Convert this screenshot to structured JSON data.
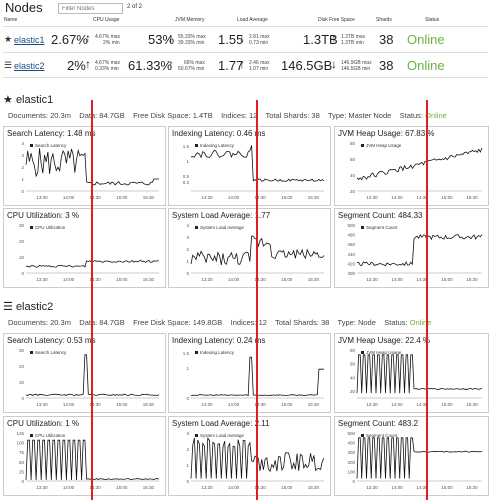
{
  "header": {
    "title": "Nodes",
    "filter_placeholder": "Filter Nodes",
    "pager": "2 of 2"
  },
  "columns": [
    "Name",
    "CPU Usage",
    "JVM Memory",
    "Load Average",
    "Disk Free Space",
    "Shards",
    "Status"
  ],
  "nodes": [
    {
      "name": "elastic1",
      "cpu": "2.67%",
      "cpu_max": "4.67% max",
      "cpu_min": "2% min",
      "jvm": "53%",
      "jvm_max": "55.33% max",
      "jvm_min": "39.33% min",
      "load": "1.55",
      "load_max": "2.81 max",
      "load_min": "0.73 min",
      "disk": "1.3TB",
      "disk_max": "1.3TB max",
      "disk_min": "1.3TB min",
      "shards": "38",
      "status": "Online",
      "cpu_arrow": "↑",
      "jvm_arrow": "↑",
      "load_arrow": "↓",
      "disk_arrow": "↑"
    },
    {
      "name": "elastic2",
      "cpu": "2%",
      "cpu_max": "4.67% max",
      "cpu_min": "0.33% min",
      "jvm": "61.33%",
      "jvm_max": "66% max",
      "jvm_min": "50.67% min",
      "load": "1.77",
      "load_max": "2.46 max",
      "load_min": "1.07 min",
      "disk": "146.5GB",
      "disk_max": "146.9GB max",
      "disk_min": "146.5GB min",
      "shards": "38",
      "status": "Online",
      "cpu_arrow": "↑",
      "jvm_arrow": "↑",
      "load_arrow": "↑",
      "disk_arrow": "↓"
    }
  ],
  "sections": [
    {
      "title": "elastic1",
      "summary": {
        "documents": "Documents: 20.3m",
        "data": "Data: 84.7GB",
        "disk": "Free Disk Space: 1.4TB",
        "indices": "Indices: 12",
        "shards": "Total Shards: 38",
        "type": "Type: Master Node",
        "status_label": "Status: ",
        "status": "Online"
      },
      "panels": [
        {
          "title": "Search Latency: 1.48 ms",
          "legend": "Search Latency"
        },
        {
          "title": "Indexing Latency: 0.46 ms",
          "legend": "Indexing Latency"
        },
        {
          "title": "JVM Heap Usage: 67.83 %",
          "legend": "JVM Heap Usage"
        },
        {
          "title": "CPU Utilization: 3 %",
          "legend": "CPU Utilization"
        },
        {
          "title": "System Load Average: 1.77",
          "legend": "System Load Average"
        },
        {
          "title": "Segment Count: 484.33",
          "legend": "Segment Count"
        }
      ]
    },
    {
      "title": "elastic2",
      "summary": {
        "documents": "Documents: 20.3m",
        "data": "Data: 84.7GB",
        "disk": "Free Disk Space: 149.8GB",
        "indices": "Indices: 12",
        "shards": "Total Shards: 38",
        "type": "Type: Node",
        "status_label": "Status: ",
        "status": "Online"
      },
      "panels": [
        {
          "title": "Search Latency: 0.53 ms",
          "legend": "Search Latency"
        },
        {
          "title": "Indexing Latency: 0.24 ms",
          "legend": "Indexing Latency"
        },
        {
          "title": "JVM Heap Usage: 22.4 %",
          "legend": "JVM Heap Usage"
        },
        {
          "title": "CPU Utilization: 1 %",
          "legend": "CPU Utilization"
        },
        {
          "title": "System Load Average: 2.11",
          "legend": "System Load Average"
        },
        {
          "title": "Segment Count: 483.2",
          "legend": "Segment Count"
        }
      ]
    }
  ],
  "x_ticks": [
    "13:30",
    "14:00",
    "14:30",
    "15:00",
    "15:30"
  ],
  "chart_data": [
    {
      "type": "line",
      "title": "Search Latency: 1.48 ms",
      "legend": "Search Latency",
      "y_ticks": [
        0,
        1,
        2,
        3,
        4
      ],
      "ylim": [
        0,
        4
      ],
      "pattern": "spiky-drop-high"
    },
    {
      "type": "line",
      "title": "Indexing Latency: 0.46 ms",
      "legend": "Indexing Latency",
      "y_ticks": [
        0.3,
        0.5,
        1,
        1.5
      ],
      "ylim": [
        0,
        1.6
      ],
      "pattern": "step-down"
    },
    {
      "type": "line",
      "title": "JVM Heap Usage: 67.83 %",
      "legend": "JVM Heap Usage",
      "y_ticks": [
        20,
        40,
        60,
        80
      ],
      "ylim": [
        20,
        80
      ],
      "pattern": "rising-noisy"
    },
    {
      "type": "line",
      "title": "CPU Utilization: 3 %",
      "legend": "CPU Utilization",
      "y_ticks": [
        0,
        10,
        20,
        30
      ],
      "ylim": [
        0,
        30
      ],
      "pattern": "flat-step"
    },
    {
      "type": "line",
      "title": "System Load Average: 1.77",
      "legend": "System Load Average",
      "y_ticks": [
        0,
        1,
        2,
        3,
        4
      ],
      "ylim": [
        0,
        4
      ],
      "pattern": "bump-noisy"
    },
    {
      "type": "line",
      "title": "Segment Count: 484.33",
      "legend": "Segment Count",
      "y_ticks": [
        400,
        420,
        440,
        460,
        480,
        500
      ],
      "ylim": [
        400,
        500
      ],
      "pattern": "step-up"
    },
    {
      "type": "line",
      "title": "Search Latency: 0.53 ms",
      "legend": "Search Latency",
      "y_ticks": [
        0,
        10,
        20,
        30
      ],
      "ylim": [
        0,
        30
      ],
      "pattern": "spike-once"
    },
    {
      "type": "line",
      "title": "Indexing Latency: 0.24 ms",
      "legend": "Indexing Latency",
      "y_ticks": [
        0,
        1,
        1.5
      ],
      "ylim": [
        0,
        1.6
      ],
      "pattern": "flat-low-spike"
    },
    {
      "type": "line",
      "title": "JVM Heap Usage: 22.4 %",
      "legend": "JVM Heap Usage",
      "y_ticks": [
        20,
        40,
        60,
        80
      ],
      "ylim": [
        10,
        80
      ],
      "pattern": "comb-then-low"
    },
    {
      "type": "line",
      "title": "CPU Utilization: 1 %",
      "legend": "CPU Utilization",
      "y_ticks": [
        0,
        25,
        50,
        75,
        100,
        125
      ],
      "ylim": [
        0,
        125
      ],
      "pattern": "comb-then-flat"
    },
    {
      "type": "line",
      "title": "System Load Average: 2.11",
      "legend": "System Load Average",
      "y_ticks": [
        0,
        1,
        2,
        3
      ],
      "ylim": [
        0,
        3
      ],
      "pattern": "mixed"
    },
    {
      "type": "line",
      "title": "Segment Count: 483.2",
      "legend": "Segment Count",
      "y_ticks": [
        0,
        100,
        200,
        300,
        400,
        500
      ],
      "ylim": [
        0,
        500
      ],
      "pattern": "comb-then-high"
    }
  ],
  "colors": {
    "online": "#6db33f",
    "link": "#1a4e8a",
    "marker": "#e02020"
  }
}
